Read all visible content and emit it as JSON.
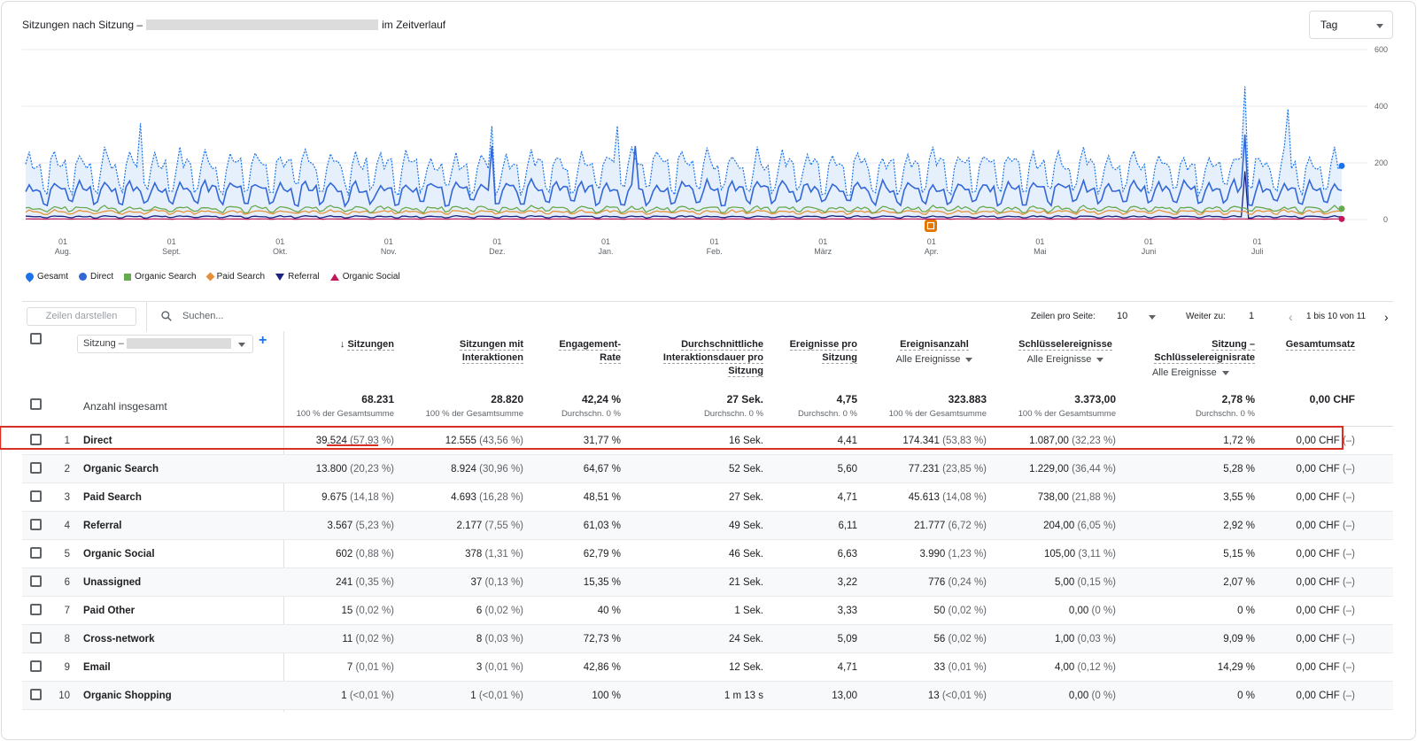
{
  "chart": {
    "title_prefix": "Sitzungen nach Sitzung –",
    "title_suffix": "im Zeitverlauf",
    "range": "Tag",
    "y_ticks": [
      "600",
      "400",
      "200",
      "0"
    ],
    "x_ticks": [
      {
        "d": "01",
        "m": "Aug."
      },
      {
        "d": "01",
        "m": "Sept."
      },
      {
        "d": "01",
        "m": "Okt."
      },
      {
        "d": "01",
        "m": "Nov."
      },
      {
        "d": "01",
        "m": "Dez."
      },
      {
        "d": "01",
        "m": "Jan."
      },
      {
        "d": "01",
        "m": "Feb."
      },
      {
        "d": "01",
        "m": "März"
      },
      {
        "d": "01",
        "m": "Apr."
      },
      {
        "d": "01",
        "m": "Mai"
      },
      {
        "d": "01",
        "m": "Juni"
      },
      {
        "d": "01",
        "m": "Juli"
      }
    ],
    "legend": [
      "Gesamt",
      "Direct",
      "Organic Search",
      "Paid Search",
      "Referral",
      "Organic Social"
    ],
    "colors": {
      "gesamt": "#1a73e8",
      "direct": "#3367d6",
      "organic_search": "#6aa84f",
      "paid_search": "#e69138",
      "referral": "#1a237e",
      "organic_social": "#c2185b"
    }
  },
  "chart_data": {
    "type": "line",
    "x_range": [
      "2023-07-27",
      "2024-07-29"
    ],
    "ylim": [
      0,
      600
    ],
    "series": [
      {
        "name": "Gesamt",
        "typical": 180,
        "peak": 470
      },
      {
        "name": "Direct",
        "typical": 100,
        "peak": 300
      },
      {
        "name": "Organic Search",
        "typical": 38
      },
      {
        "name": "Paid Search",
        "typical": 27
      },
      {
        "name": "Referral",
        "typical": 10,
        "peak": 170
      },
      {
        "name": "Organic Social",
        "typical": 2
      }
    ]
  },
  "toolbar": {
    "rows_button": "Zeilen darstellen",
    "search_placeholder": "Suchen...",
    "rows_per_page_label": "Zeilen pro Seite:",
    "rows_per_page": "10",
    "goto_label": "Weiter zu:",
    "goto_value": "1",
    "pagination": "1 bis 10 von 11"
  },
  "table": {
    "dimension_label": "Sitzung –",
    "totals_label": "Anzahl insgesamt",
    "columns": [
      {
        "label": "Sitzungen",
        "sorted": true,
        "total": "68.231",
        "total_sub": "100 % der Gesamtsumme"
      },
      {
        "label": "Sitzungen mit Interaktionen",
        "total": "28.820",
        "total_sub": "100 % der Gesamtsumme"
      },
      {
        "label": "Engagement-Rate",
        "total": "42,24 %",
        "total_sub": "Durchschn. 0 %"
      },
      {
        "label": "Durchschnittliche Interaktionsdauer pro Sitzung",
        "total": "27 Sek.",
        "total_sub": "Durchschn. 0 %"
      },
      {
        "label": "Ereignisse pro Sitzung",
        "total": "4,75",
        "total_sub": "Durchschn. 0 %"
      },
      {
        "label": "Ereignisanzahl",
        "sub": "Alle Ereignisse",
        "total": "323.883",
        "total_sub": "100 % der Gesamtsumme"
      },
      {
        "label": "Schlüsselereignisse",
        "sub": "Alle Ereignisse",
        "total": "3.373,00",
        "total_sub": "100 % der Gesamtsumme"
      },
      {
        "label": "Sitzung – Schlüsselereignisrate",
        "sub": "Alle Ereignisse",
        "total": "2,78 %",
        "total_sub": "Durchschn. 0 %"
      },
      {
        "label": "Gesamtumsatz",
        "total": "0,00 CHF",
        "total_sub": ""
      }
    ],
    "rows": [
      {
        "n": "1",
        "name": "Direct",
        "c": [
          [
            "39.524",
            "(57,93 %)"
          ],
          [
            "12.555",
            "(43,56 %)"
          ],
          [
            "31,77 %",
            ""
          ],
          [
            "16 Sek.",
            ""
          ],
          [
            "4,41",
            ""
          ],
          [
            "174.341",
            "(53,83 %)"
          ],
          [
            "1.087,00",
            "(32,23 %)"
          ],
          [
            "1,72 %",
            ""
          ],
          [
            "0,00 CHF",
            "(–)"
          ]
        ]
      },
      {
        "n": "2",
        "name": "Organic Search",
        "c": [
          [
            "13.800",
            "(20,23 %)"
          ],
          [
            "8.924",
            "(30,96 %)"
          ],
          [
            "64,67 %",
            ""
          ],
          [
            "52 Sek.",
            ""
          ],
          [
            "5,60",
            ""
          ],
          [
            "77.231",
            "(23,85 %)"
          ],
          [
            "1.229,00",
            "(36,44 %)"
          ],
          [
            "5,28 %",
            ""
          ],
          [
            "0,00 CHF",
            "(–)"
          ]
        ]
      },
      {
        "n": "3",
        "name": "Paid Search",
        "c": [
          [
            "9.675",
            "(14,18 %)"
          ],
          [
            "4.693",
            "(16,28 %)"
          ],
          [
            "48,51 %",
            ""
          ],
          [
            "27 Sek.",
            ""
          ],
          [
            "4,71",
            ""
          ],
          [
            "45.613",
            "(14,08 %)"
          ],
          [
            "738,00",
            "(21,88 %)"
          ],
          [
            "3,55 %",
            ""
          ],
          [
            "0,00 CHF",
            "(–)"
          ]
        ]
      },
      {
        "n": "4",
        "name": "Referral",
        "c": [
          [
            "3.567",
            "(5,23 %)"
          ],
          [
            "2.177",
            "(7,55 %)"
          ],
          [
            "61,03 %",
            ""
          ],
          [
            "49 Sek.",
            ""
          ],
          [
            "6,11",
            ""
          ],
          [
            "21.777",
            "(6,72 %)"
          ],
          [
            "204,00",
            "(6,05 %)"
          ],
          [
            "2,92 %",
            ""
          ],
          [
            "0,00 CHF",
            "(–)"
          ]
        ]
      },
      {
        "n": "5",
        "name": "Organic Social",
        "c": [
          [
            "602",
            "(0,88 %)"
          ],
          [
            "378",
            "(1,31 %)"
          ],
          [
            "62,79 %",
            ""
          ],
          [
            "46 Sek.",
            ""
          ],
          [
            "6,63",
            ""
          ],
          [
            "3.990",
            "(1,23 %)"
          ],
          [
            "105,00",
            "(3,11 %)"
          ],
          [
            "5,15 %",
            ""
          ],
          [
            "0,00 CHF",
            "(–)"
          ]
        ]
      },
      {
        "n": "6",
        "name": "Unassigned",
        "c": [
          [
            "241",
            "(0,35 %)"
          ],
          [
            "37",
            "(0,13 %)"
          ],
          [
            "15,35 %",
            ""
          ],
          [
            "21 Sek.",
            ""
          ],
          [
            "3,22",
            ""
          ],
          [
            "776",
            "(0,24 %)"
          ],
          [
            "5,00",
            "(0,15 %)"
          ],
          [
            "2,07 %",
            ""
          ],
          [
            "0,00 CHF",
            "(–)"
          ]
        ]
      },
      {
        "n": "7",
        "name": "Paid Other",
        "c": [
          [
            "15",
            "(0,02 %)"
          ],
          [
            "6",
            "(0,02 %)"
          ],
          [
            "40 %",
            ""
          ],
          [
            "1 Sek.",
            ""
          ],
          [
            "3,33",
            ""
          ],
          [
            "50",
            "(0,02 %)"
          ],
          [
            "0,00",
            "(0 %)"
          ],
          [
            "0 %",
            ""
          ],
          [
            "0,00 CHF",
            "(–)"
          ]
        ]
      },
      {
        "n": "8",
        "name": "Cross-network",
        "c": [
          [
            "11",
            "(0,02 %)"
          ],
          [
            "8",
            "(0,03 %)"
          ],
          [
            "72,73 %",
            ""
          ],
          [
            "24 Sek.",
            ""
          ],
          [
            "5,09",
            ""
          ],
          [
            "56",
            "(0,02 %)"
          ],
          [
            "1,00",
            "(0,03 %)"
          ],
          [
            "9,09 %",
            ""
          ],
          [
            "0,00 CHF",
            "(–)"
          ]
        ]
      },
      {
        "n": "9",
        "name": "Email",
        "c": [
          [
            "7",
            "(0,01 %)"
          ],
          [
            "3",
            "(0,01 %)"
          ],
          [
            "42,86 %",
            ""
          ],
          [
            "12 Sek.",
            ""
          ],
          [
            "4,71",
            ""
          ],
          [
            "33",
            "(0,01 %)"
          ],
          [
            "4,00",
            "(0,12 %)"
          ],
          [
            "14,29 %",
            ""
          ],
          [
            "0,00 CHF",
            "(–)"
          ]
        ]
      },
      {
        "n": "10",
        "name": "Organic Shopping",
        "c": [
          [
            "1",
            "(<0,01 %)"
          ],
          [
            "1",
            "(<0,01 %)"
          ],
          [
            "100 %",
            ""
          ],
          [
            "1 m 13 s",
            ""
          ],
          [
            "13,00",
            ""
          ],
          [
            "13",
            "(<0,01 %)"
          ],
          [
            "0,00",
            "(0 %)"
          ],
          [
            "0 %",
            ""
          ],
          [
            "0,00 CHF",
            "(–)"
          ]
        ]
      }
    ]
  }
}
